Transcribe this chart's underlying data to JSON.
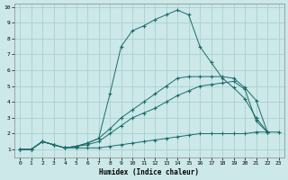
{
  "xlabel": "Humidex (Indice chaleur)",
  "bg_color": "#cce8e8",
  "grid_color": "#aad0d0",
  "line_color": "#1a6b6b",
  "xlim": [
    -0.5,
    23.5
  ],
  "ylim": [
    0.5,
    10.2
  ],
  "xticks": [
    0,
    1,
    2,
    3,
    4,
    5,
    6,
    7,
    8,
    9,
    10,
    11,
    12,
    13,
    14,
    15,
    16,
    17,
    18,
    19,
    20,
    21,
    22,
    23
  ],
  "yticks": [
    1,
    2,
    3,
    4,
    5,
    6,
    7,
    8,
    9,
    10
  ],
  "series": [
    {
      "x": [
        0,
        1,
        2,
        3,
        4,
        5,
        6,
        7,
        8,
        9,
        10,
        11,
        12,
        13,
        14,
        15,
        16,
        17,
        18,
        19,
        20,
        21,
        22,
        23
      ],
      "y": [
        1,
        1,
        1.5,
        1.3,
        1.1,
        1.1,
        1.1,
        1.1,
        1.2,
        1.3,
        1.4,
        1.5,
        1.6,
        1.7,
        1.8,
        1.9,
        2.0,
        2.0,
        2.0,
        2.0,
        2.0,
        2.1,
        2.1,
        2.1
      ]
    },
    {
      "x": [
        0,
        1,
        2,
        3,
        4,
        5,
        6,
        7,
        8,
        9,
        10,
        11,
        12,
        13,
        14,
        15,
        16,
        17,
        18,
        19,
        20,
        21,
        22,
        23
      ],
      "y": [
        1,
        1,
        1.5,
        1.3,
        1.1,
        1.2,
        1.3,
        1.5,
        2.0,
        2.5,
        3.0,
        3.3,
        3.6,
        4.0,
        4.4,
        4.7,
        5.0,
        5.1,
        5.2,
        5.3,
        4.8,
        2.8,
        2.1,
        null
      ]
    },
    {
      "x": [
        0,
        1,
        2,
        3,
        4,
        5,
        6,
        7,
        8,
        9,
        10,
        11,
        12,
        13,
        14,
        15,
        16,
        17,
        18,
        19,
        20,
        21,
        22,
        23
      ],
      "y": [
        1,
        1,
        1.5,
        1.3,
        1.1,
        1.2,
        1.4,
        1.7,
        2.3,
        3.0,
        3.5,
        4.0,
        4.5,
        5.0,
        5.5,
        5.6,
        5.6,
        5.6,
        5.6,
        5.5,
        4.9,
        4.1,
        2.1,
        null
      ]
    },
    {
      "x": [
        0,
        1,
        2,
        3,
        4,
        5,
        6,
        7,
        8,
        9,
        10,
        11,
        12,
        13,
        14,
        15,
        16,
        17,
        18,
        19,
        20,
        21,
        22
      ],
      "y": [
        1,
        1,
        1.5,
        1.3,
        1.1,
        1.2,
        1.4,
        1.7,
        4.5,
        7.5,
        8.5,
        8.8,
        9.2,
        9.5,
        9.8,
        9.5,
        7.5,
        6.5,
        5.5,
        4.9,
        4.2,
        3.0,
        2.1
      ]
    }
  ]
}
